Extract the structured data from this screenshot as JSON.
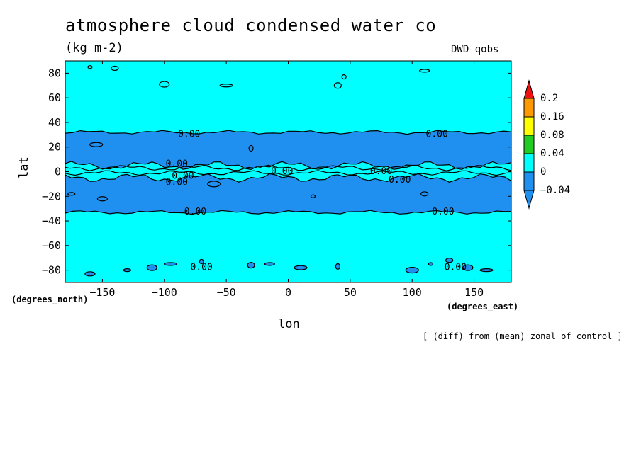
{
  "header": {
    "title": "atmosphere cloud condensed water co",
    "units": "(kg m-2)",
    "source": "DWD_qobs",
    "note": "[ (diff) from (mean) zonal of control ]"
  },
  "colors": {
    "ocean_bg": "#00ffff",
    "band_negative": "#2090f0",
    "level_red": "#ee1111",
    "level_orange": "#ff9900",
    "level_yellow": "#ffff00",
    "level_green": "#22cc22",
    "level_cyan": "#00ffff",
    "level_blue": "#2090f0"
  },
  "chart_data": {
    "type": "heatmap",
    "subtype": "contour map",
    "title": "atmosphere cloud condensed water co",
    "units": "(kg m-2)",
    "xlabel": "lon",
    "ylabel": "lat",
    "x_unit_label": "(degrees_east)",
    "y_unit_label": "(degrees_north)",
    "xlim": [
      -180,
      180
    ],
    "ylim": [
      -90,
      90
    ],
    "xticks": [
      -150,
      -100,
      -50,
      0,
      50,
      100,
      150
    ],
    "yticks": [
      80,
      60,
      40,
      20,
      0,
      -20,
      -40,
      -60,
      -80
    ],
    "colorbar": {
      "levels": [
        -0.04,
        0,
        0.04,
        0.08,
        0.16,
        0.2
      ],
      "labels": [
        "0.2",
        "0.16",
        "0.08",
        "0.04",
        "0",
        "-0.04"
      ],
      "colors": [
        "#2090f0",
        "#00ffff",
        "#22cc22",
        "#ffff00",
        "#ff9900",
        "#ee1111"
      ]
    },
    "negative_bands_lat": [
      [
        5,
        32
      ],
      [
        -5,
        -33
      ]
    ],
    "contour_labels": [
      {
        "text": "0.00",
        "lon": -80,
        "lat": 31
      },
      {
        "text": "0.00",
        "lon": 120,
        "lat": 31
      },
      {
        "text": "0.00",
        "lon": -90,
        "lat": 7
      },
      {
        "text": "0.00",
        "lon": -85,
        "lat": -3
      },
      {
        "text": "0.00",
        "lon": -90,
        "lat": -8
      },
      {
        "text": "0.00",
        "lon": -5,
        "lat": 1
      },
      {
        "text": "0.00",
        "lon": 75,
        "lat": 1
      },
      {
        "text": "0.00",
        "lon": 90,
        "lat": -6
      },
      {
        "text": "0.00",
        "lon": -75,
        "lat": -32
      },
      {
        "text": "0.00",
        "lon": 125,
        "lat": -32
      },
      {
        "text": "0.00",
        "lon": -70,
        "lat": -77
      },
      {
        "text": "0.00",
        "lon": 135,
        "lat": -77
      }
    ],
    "grid": false
  }
}
